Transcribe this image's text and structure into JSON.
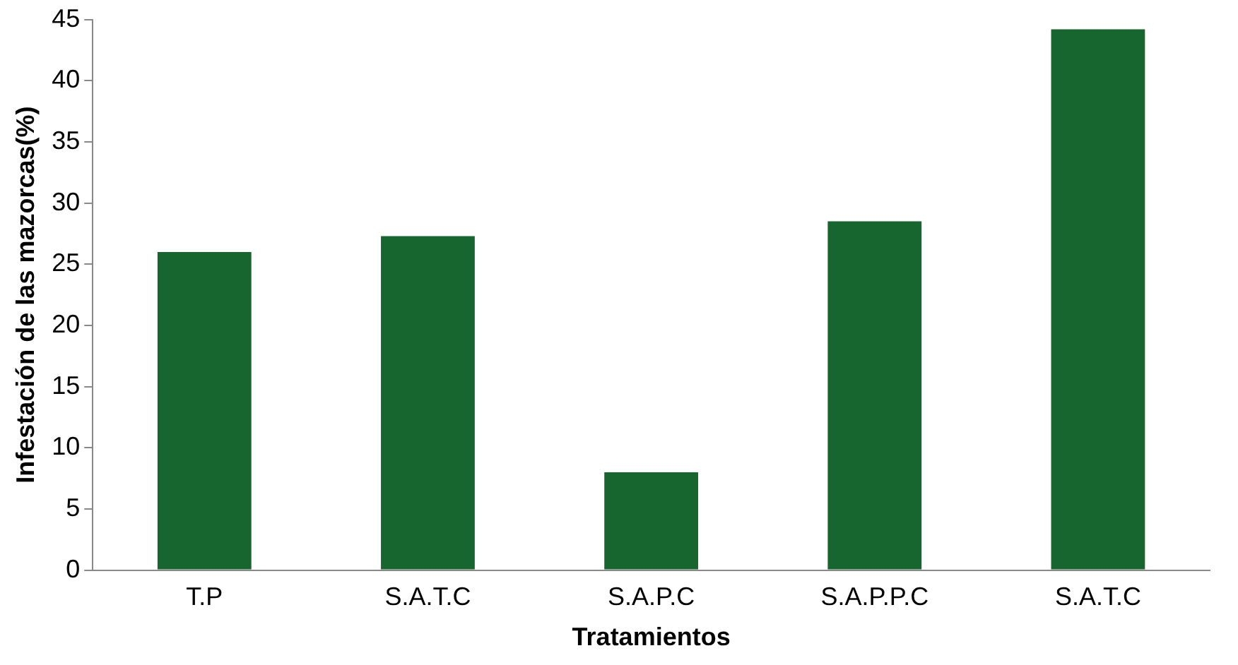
{
  "chart_data": {
    "type": "bar",
    "xlabel": "Tratamientos",
    "ylabel": "Infestación de las mazorcas(%)",
    "categories": [
      "T.P",
      "S.A.T.C",
      "S.A.P.C",
      "S.A.P.P.C",
      "S.A.T.C"
    ],
    "values": [
      26,
      27.3,
      8,
      28.5,
      44.2
    ],
    "color": "#17652f",
    "ylim": [
      0,
      45
    ],
    "yticks": [
      0,
      5,
      10,
      15,
      20,
      25,
      30,
      35,
      40,
      45
    ],
    "grid": false,
    "legend": false
  }
}
